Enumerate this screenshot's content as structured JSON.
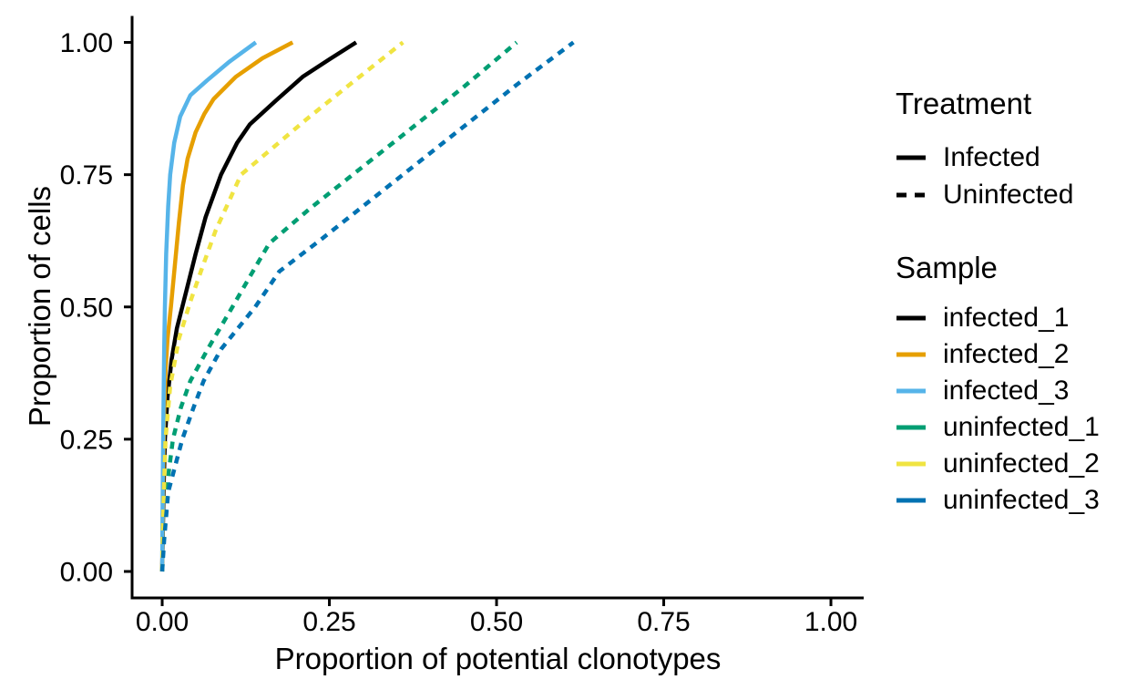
{
  "chart_data": {
    "type": "line",
    "title": "",
    "xlabel": "Proportion of potential clonotypes",
    "ylabel": "Proportion of cells",
    "xlim": [
      -0.045,
      1.049
    ],
    "ylim": [
      -0.05,
      1.05
    ],
    "x_ticks": [
      0,
      0.25,
      0.5,
      0.75,
      1.0
    ],
    "x_tick_labels": [
      "0.00",
      "0.25",
      "0.50",
      "0.75",
      "1.00"
    ],
    "y_ticks": [
      0,
      0.25,
      0.5,
      0.75,
      1.0
    ],
    "y_tick_labels": [
      "0.00",
      "0.25",
      "0.50",
      "0.75",
      "1.00"
    ],
    "grid": "off",
    "legend_position": "right",
    "axis_color": "#000000",
    "series": [
      {
        "name": "infected_1",
        "treatment": "Infected",
        "color": "#000000",
        "linetype": "solid",
        "points": [
          [
            0,
            0
          ],
          [
            0.001,
            0.08
          ],
          [
            0.002,
            0.15
          ],
          [
            0.004,
            0.25
          ],
          [
            0.008,
            0.33
          ],
          [
            0.014,
            0.4
          ],
          [
            0.022,
            0.46
          ],
          [
            0.036,
            0.53
          ],
          [
            0.05,
            0.6
          ],
          [
            0.065,
            0.67
          ],
          [
            0.088,
            0.75
          ],
          [
            0.112,
            0.81
          ],
          [
            0.131,
            0.845
          ],
          [
            0.17,
            0.89
          ],
          [
            0.21,
            0.935
          ],
          [
            0.25,
            0.968
          ],
          [
            0.29,
            1.0
          ]
        ]
      },
      {
        "name": "infected_2",
        "treatment": "Infected",
        "color": "#E69F00",
        "linetype": "solid",
        "points": [
          [
            0,
            0
          ],
          [
            0.0008,
            0.08
          ],
          [
            0.0012,
            0.15
          ],
          [
            0.002,
            0.22
          ],
          [
            0.003,
            0.3
          ],
          [
            0.005,
            0.38
          ],
          [
            0.008,
            0.44
          ],
          [
            0.013,
            0.5
          ],
          [
            0.019,
            0.58
          ],
          [
            0.025,
            0.66
          ],
          [
            0.031,
            0.73
          ],
          [
            0.038,
            0.78
          ],
          [
            0.05,
            0.83
          ],
          [
            0.063,
            0.865
          ],
          [
            0.077,
            0.893
          ],
          [
            0.11,
            0.935
          ],
          [
            0.15,
            0.97
          ],
          [
            0.195,
            1.0
          ]
        ]
      },
      {
        "name": "infected_3",
        "treatment": "Infected",
        "color": "#56B4E9",
        "linetype": "solid",
        "points": [
          [
            0,
            0
          ],
          [
            0.0005,
            0.1
          ],
          [
            0.001,
            0.2
          ],
          [
            0.0018,
            0.3
          ],
          [
            0.003,
            0.42
          ],
          [
            0.004,
            0.5
          ],
          [
            0.006,
            0.6
          ],
          [
            0.009,
            0.69
          ],
          [
            0.012,
            0.75
          ],
          [
            0.018,
            0.81
          ],
          [
            0.027,
            0.86
          ],
          [
            0.042,
            0.9
          ],
          [
            0.067,
            0.928
          ],
          [
            0.1,
            0.963
          ],
          [
            0.14,
            1.0
          ]
        ]
      },
      {
        "name": "uninfected_1",
        "treatment": "Uninfected",
        "color": "#009E73",
        "linetype": "dashed",
        "points": [
          [
            0,
            0
          ],
          [
            0.002,
            0.06
          ],
          [
            0.006,
            0.15
          ],
          [
            0.016,
            0.25
          ],
          [
            0.028,
            0.31
          ],
          [
            0.042,
            0.36
          ],
          [
            0.068,
            0.42
          ],
          [
            0.105,
            0.5
          ],
          [
            0.13,
            0.555
          ],
          [
            0.16,
            0.62
          ],
          [
            0.22,
            0.685
          ],
          [
            0.29,
            0.755
          ],
          [
            0.37,
            0.835
          ],
          [
            0.45,
            0.915
          ],
          [
            0.53,
            1.0
          ]
        ]
      },
      {
        "name": "uninfected_2",
        "treatment": "Uninfected",
        "color": "#F0E442",
        "linetype": "dashed",
        "points": [
          [
            0,
            0
          ],
          [
            0.001,
            0.08
          ],
          [
            0.0025,
            0.15
          ],
          [
            0.005,
            0.25
          ],
          [
            0.012,
            0.35
          ],
          [
            0.025,
            0.44
          ],
          [
            0.042,
            0.51
          ],
          [
            0.06,
            0.575
          ],
          [
            0.08,
            0.645
          ],
          [
            0.1,
            0.7
          ],
          [
            0.118,
            0.75
          ],
          [
            0.16,
            0.795
          ],
          [
            0.216,
            0.855
          ],
          [
            0.28,
            0.92
          ],
          [
            0.36,
            1.0
          ]
        ]
      },
      {
        "name": "uninfected_3",
        "treatment": "Uninfected",
        "color": "#0072B2",
        "linetype": "dashed",
        "points": [
          [
            0,
            0
          ],
          [
            0.003,
            0.06
          ],
          [
            0.009,
            0.15
          ],
          [
            0.03,
            0.25
          ],
          [
            0.047,
            0.31
          ],
          [
            0.062,
            0.36
          ],
          [
            0.088,
            0.42
          ],
          [
            0.139,
            0.5
          ],
          [
            0.175,
            0.567
          ],
          [
            0.24,
            0.63
          ],
          [
            0.3,
            0.69
          ],
          [
            0.36,
            0.75
          ],
          [
            0.45,
            0.84
          ],
          [
            0.53,
            0.92
          ],
          [
            0.615,
            1.0
          ]
        ]
      }
    ]
  },
  "legend": {
    "treatment": {
      "title": "Treatment",
      "items": [
        {
          "label": "Infected",
          "color": "#000000",
          "linetype": "solid"
        },
        {
          "label": "Uninfected",
          "color": "#000000",
          "linetype": "dashed"
        }
      ]
    },
    "sample": {
      "title": "Sample",
      "items": [
        {
          "label": "infected_1",
          "color": "#000000",
          "linetype": "solid"
        },
        {
          "label": "infected_2",
          "color": "#E69F00",
          "linetype": "solid"
        },
        {
          "label": "infected_3",
          "color": "#56B4E9",
          "linetype": "solid"
        },
        {
          "label": "uninfected_1",
          "color": "#009E73",
          "linetype": "solid"
        },
        {
          "label": "uninfected_2",
          "color": "#F0E442",
          "linetype": "solid"
        },
        {
          "label": "uninfected_3",
          "color": "#0072B2",
          "linetype": "solid"
        }
      ]
    }
  }
}
